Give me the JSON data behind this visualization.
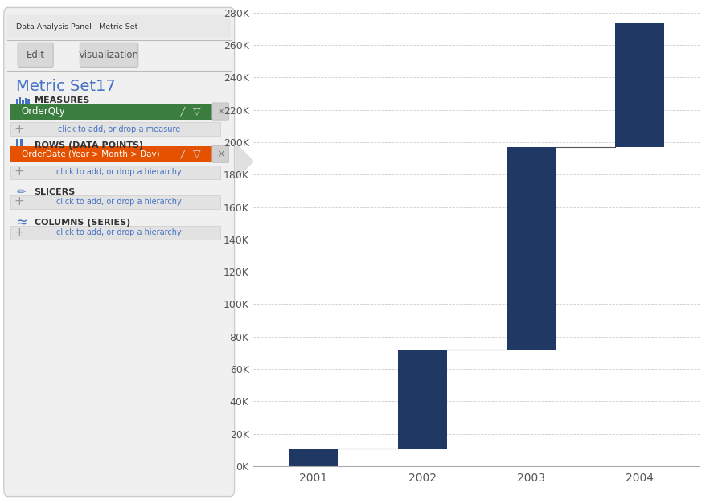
{
  "years": [
    "2001",
    "2002",
    "2003",
    "2004"
  ],
  "cumulative_values": [
    11000,
    72000,
    197000,
    274000
  ],
  "bar_color": "#1f3864",
  "background_color": "#ffffff",
  "grid_color": "#cccccc",
  "tick_color": "#555555",
  "ylim_max": 280000,
  "ytick_step": 20000,
  "bar_width": 0.45,
  "connector_color": "#555555",
  "panel_title": "Data Analysis Panel - Metric Set",
  "panel_heading": "Metric Set17",
  "measures_label": "MEASURES",
  "measures_item": "OrderQty",
  "measures_item_bg": "#3a7d3f",
  "rows_label": "ROWS (DATA POINTS)",
  "rows_item": "OrderDate (Year > Month > Day)",
  "rows_item_bg": "#e65100",
  "slicers_label": "SLICERS",
  "columns_label": "COLUMNS (SERIES)",
  "add_measure_text": "click to add, or drop a measure",
  "add_hier_text": "click to add, or drop a hierarchy",
  "panel_bg": "#f0f0f0",
  "panel_border": "#cccccc",
  "panel_title_bg": "#e8e8e8",
  "add_row_bg": "#e2e2e2",
  "blue_text_color": "#4472c4",
  "section_text_color": "#333333",
  "header_text_color": "#555555",
  "separator_color": "#bbbbbb"
}
